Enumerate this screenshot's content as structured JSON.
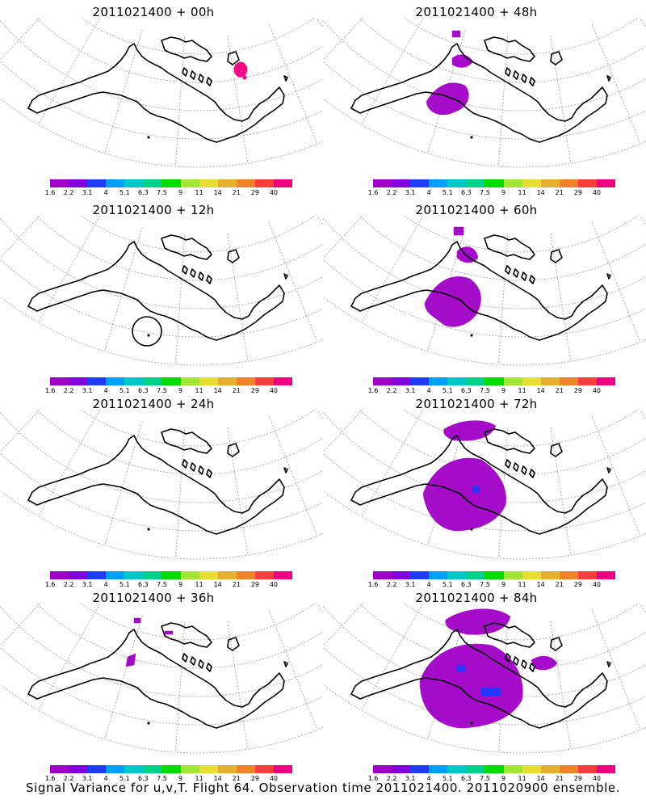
{
  "panels": [
    {
      "title": "2011021400 + 00h"
    },
    {
      "title": "2011021400 + 48h"
    },
    {
      "title": "2011021400 + 12h"
    },
    {
      "title": "2011021400 + 60h"
    },
    {
      "title": "2011021400 + 24h"
    },
    {
      "title": "2011021400 + 72h"
    },
    {
      "title": "2011021400 + 36h"
    },
    {
      "title": "2011021400 + 84h"
    }
  ],
  "colorbar": {
    "labels": [
      "1.6",
      "2.2",
      "3.1",
      "4",
      "5.1",
      "6.3",
      "7.5",
      "9",
      "11",
      "14",
      "21",
      "29",
      "40"
    ],
    "colors": [
      "#a000c8",
      "#8200dc",
      "#1e3cff",
      "#00a0ff",
      "#00c8c8",
      "#00d28c",
      "#00dc00",
      "#a0e632",
      "#e6dc32",
      "#e6af2d",
      "#f08228",
      "#fa3c3c",
      "#f00082"
    ]
  },
  "caption": "Signal Variance for u,v,T. Flight 64. Observation time 2011021400. 2011020900 ensemble."
}
